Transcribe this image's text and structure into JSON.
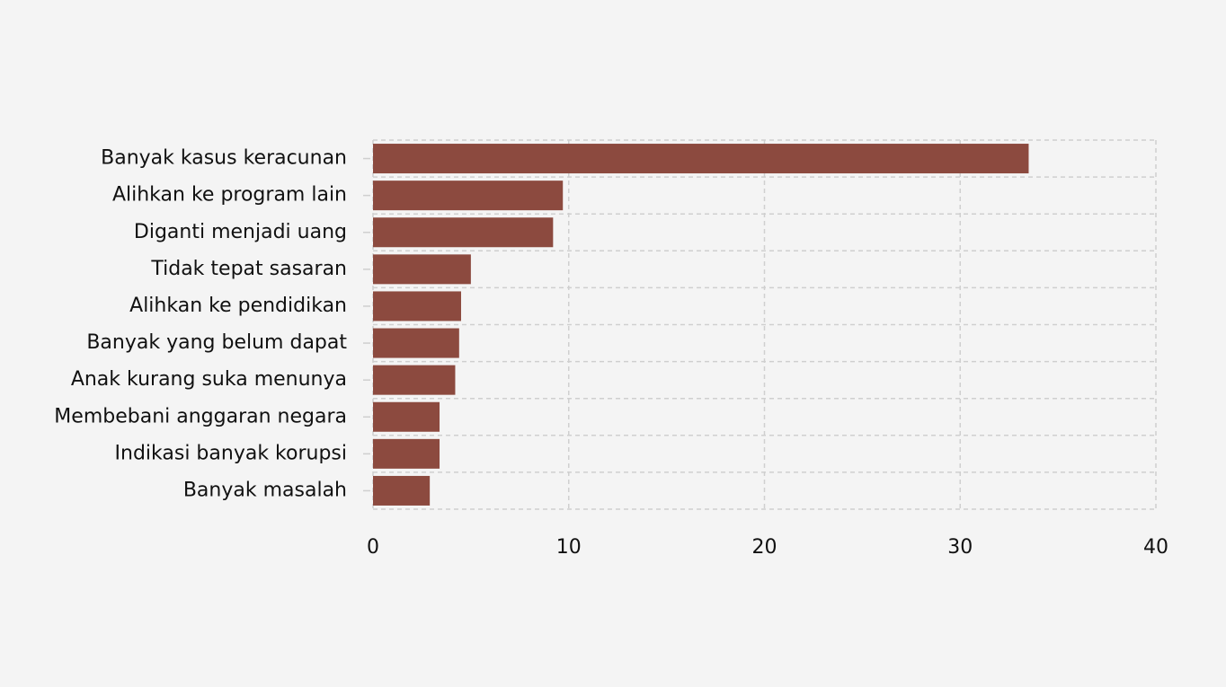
{
  "chart_data": {
    "type": "bar",
    "orientation": "horizontal",
    "categories": [
      "Banyak kasus keracunan",
      "Alihkan ke program lain",
      "Diganti menjadi uang",
      "Tidak tepat sasaran",
      "Alihkan ke pendidikan",
      "Banyak yang belum dapat",
      "Anak kurang suka menunya",
      "Membebani anggaran negara",
      "Indikasi banyak korupsi",
      "Banyak masalah"
    ],
    "values": [
      33.5,
      9.7,
      9.2,
      5.0,
      4.5,
      4.4,
      4.2,
      3.4,
      3.4,
      2.9
    ],
    "color": "#8c4a3f",
    "xlim": [
      0,
      40
    ],
    "xticks": [
      0,
      10,
      20,
      30,
      40
    ],
    "grid": true
  }
}
